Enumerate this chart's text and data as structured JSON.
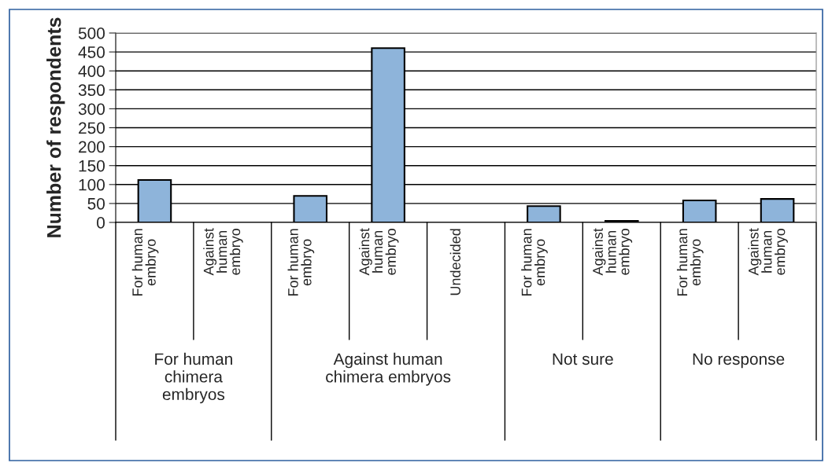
{
  "chart_data": {
    "type": "bar",
    "ylabel": "Number of respondents",
    "categories": [
      "For human\nembryo",
      "Against\nhuman\nembryo",
      "For human\nembryo",
      "Against\nhuman\nembryo",
      "Undecided",
      "For human\nembryo",
      "Against\nhuman\nembryo",
      "For human\nembryo",
      "Against\nhuman\nembryo"
    ],
    "values": [
      112,
      null,
      70,
      460,
      null,
      43,
      4,
      58,
      62
    ],
    "color": "#8eb4da",
    "annotations": [
      "For human\nchimera\nembryos",
      "Against human\nchimera embryos",
      "Not sure",
      "No response"
    ],
    "ylim": [
      0,
      500
    ],
    "yticks": [
      0,
      50,
      100,
      150,
      200,
      250,
      300,
      350,
      400,
      450,
      500
    ],
    "grid": "y",
    "legend": false
  }
}
